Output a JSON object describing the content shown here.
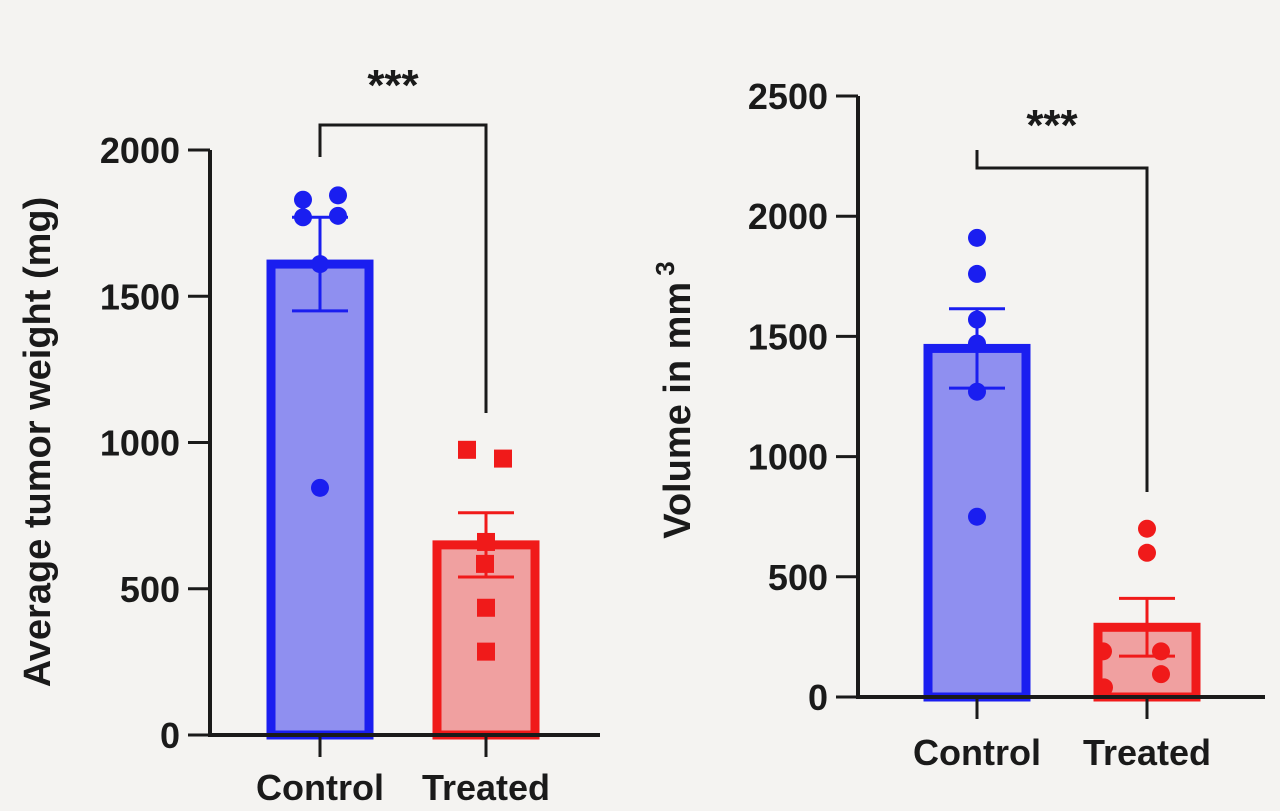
{
  "chart_data": [
    {
      "type": "bar",
      "title": "",
      "xlabel": "",
      "ylabel": "Average tumor weight (mg)",
      "ylim": [
        0,
        2000
      ],
      "yticks": [
        0,
        500,
        1000,
        1500,
        2000
      ],
      "grid": false,
      "categories": [
        "Control",
        "Treated"
      ],
      "values": [
        1610,
        650
      ],
      "error_sem": [
        160,
        110
      ],
      "points": [
        [
          1830,
          1845,
          1770,
          1775,
          1610,
          845
        ],
        [
          975,
          945,
          660,
          585,
          435,
          285
        ]
      ],
      "point_markers": [
        "circle",
        "square"
      ],
      "colors": {
        "Control": {
          "stroke": "#1a1ef0",
          "fill": "#8f8ff0"
        },
        "Treated": {
          "stroke": "#f01a1a",
          "fill": "#f0a0a0"
        }
      },
      "significance": {
        "label": "***",
        "between": [
          "Control",
          "Treated"
        ]
      }
    },
    {
      "type": "bar",
      "title": "",
      "xlabel": "",
      "ylabel": "Volume in mm",
      "ylabel_superscript": "3",
      "ylim": [
        0,
        2500
      ],
      "yticks": [
        0,
        500,
        1000,
        1500,
        2000,
        2500
      ],
      "grid": false,
      "categories": [
        "Control",
        "Treated"
      ],
      "values": [
        1450,
        290
      ],
      "error_sem": [
        165,
        120
      ],
      "points": [
        [
          1910,
          1760,
          1570,
          1470,
          1270,
          750
        ],
        [
          700,
          600,
          190,
          190,
          95,
          40
        ]
      ],
      "point_markers": [
        "circle",
        "circle"
      ],
      "colors": {
        "Control": {
          "stroke": "#1a1ef0",
          "fill": "#8f8ff0"
        },
        "Treated": {
          "stroke": "#f01a1a",
          "fill": "#f0a0a0"
        }
      },
      "significance": {
        "label": "***",
        "between": [
          "Control",
          "Treated"
        ]
      }
    }
  ]
}
